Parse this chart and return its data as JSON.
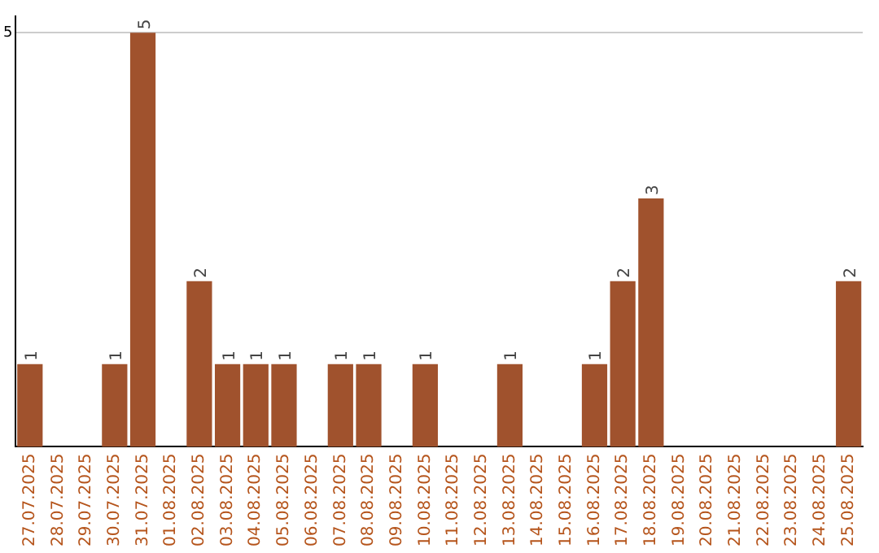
{
  "chart_data": {
    "type": "bar",
    "categories": [
      "27.07.2025",
      "28.07.2025",
      "29.07.2025",
      "30.07.2025",
      "31.07.2025",
      "01.08.2025",
      "02.08.2025",
      "03.08.2025",
      "04.08.2025",
      "05.08.2025",
      "06.08.2025",
      "07.08.2025",
      "08.08.2025",
      "09.08.2025",
      "10.08.2025",
      "11.08.2025",
      "12.08.2025",
      "13.08.2025",
      "14.08.2025",
      "15.08.2025",
      "16.08.2025",
      "17.08.2025",
      "18.08.2025",
      "19.08.2025",
      "20.08.2025",
      "21.08.2025",
      "22.08.2025",
      "23.08.2025",
      "24.08.2025",
      "25.08.2025"
    ],
    "values": [
      1,
      0,
      0,
      1,
      5,
      0,
      2,
      1,
      1,
      1,
      0,
      1,
      1,
      0,
      1,
      0,
      0,
      1,
      0,
      0,
      1,
      2,
      3,
      0,
      0,
      0,
      0,
      0,
      0,
      2
    ],
    "value_labels": [
      "1",
      null,
      null,
      "1",
      "5",
      null,
      "2",
      "1",
      "1",
      "1",
      null,
      "1",
      "1",
      null,
      "1",
      null,
      null,
      "1",
      null,
      null,
      "1",
      "2",
      "3",
      null,
      null,
      null,
      null,
      null,
      null,
      "2"
    ],
    "color": "#a0522d",
    "ylim": [
      0,
      5.2
    ],
    "yticks": [
      5
    ],
    "grid": "y",
    "legend": false
  }
}
